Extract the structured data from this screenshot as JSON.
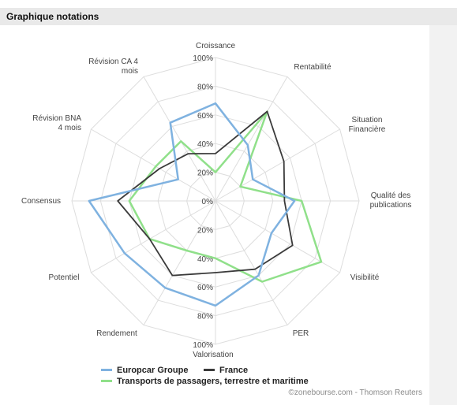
{
  "header": {
    "title": "Graphique notations"
  },
  "colors": {
    "europcar": "#7fb2e0",
    "france": "#3a3a3a",
    "transports": "#90e08a",
    "grid": "#dddddd",
    "header_bg": "#e9e9e9"
  },
  "chart_data": {
    "type": "radar",
    "categories": [
      "Croissance",
      "Rentabilité",
      "Situation Financière",
      "Qualité des publications",
      "Visibilité",
      "PER",
      "Valorisation",
      "Rendement",
      "Potentiel",
      "Consensus",
      "Révision BNA 4 mois",
      "Révision CA 4 mois"
    ],
    "radial_ticks": [
      "0%",
      "20%",
      "40%",
      "60%",
      "80%",
      "100%"
    ],
    "rlim": [
      0,
      100
    ],
    "grid": true,
    "legend_position": "bottom",
    "series": [
      {
        "name": "Europcar Groupe",
        "color": "#7fb2e0",
        "values": [
          68,
          45,
          30,
          55,
          45,
          60,
          73,
          70,
          73,
          88,
          30,
          63
        ]
      },
      {
        "name": "France",
        "color": "#3a3a3a",
        "values": [
          33,
          72,
          55,
          48,
          62,
          55,
          50,
          60,
          53,
          68,
          45,
          38
        ]
      },
      {
        "name": "Transports de passagers, terrestre et maritime",
        "color": "#90e08a",
        "values": [
          20,
          72,
          20,
          60,
          85,
          65,
          40,
          40,
          53,
          60,
          48,
          48
        ]
      }
    ]
  },
  "credit": "©zonebourse.com - Thomson Reuters"
}
